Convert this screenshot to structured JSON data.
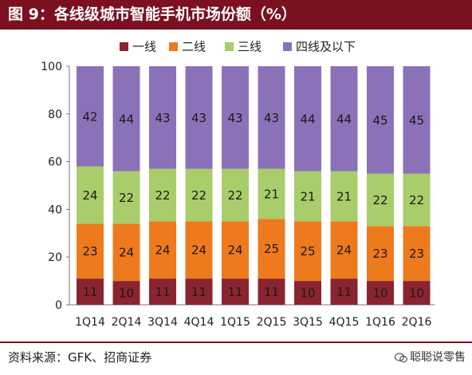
{
  "header": {
    "figure_label": "图 9：",
    "title": "各线级城市智能手机市场份额（%）"
  },
  "chart_data": {
    "type": "bar",
    "stacked": true,
    "title": "各线级城市智能手机市场份额（%）",
    "categories": [
      "1Q14",
      "2Q14",
      "3Q14",
      "4Q14",
      "1Q15",
      "2Q15",
      "3Q15",
      "4Q15",
      "1Q16",
      "2Q16"
    ],
    "series": [
      {
        "name": "一线",
        "color": "#8b2431",
        "values": [
          11,
          10,
          11,
          11,
          11,
          11,
          10,
          11,
          10,
          10
        ]
      },
      {
        "name": "二线",
        "color": "#ee7a1e",
        "values": [
          23,
          24,
          24,
          24,
          24,
          25,
          25,
          24,
          23,
          23
        ]
      },
      {
        "name": "三线",
        "color": "#a9cd6a",
        "values": [
          24,
          22,
          22,
          22,
          22,
          21,
          21,
          21,
          22,
          22
        ]
      },
      {
        "name": "四线及以下",
        "color": "#8b72b8",
        "values": [
          42,
          44,
          43,
          43,
          43,
          43,
          44,
          44,
          45,
          45
        ]
      }
    ],
    "ylim": [
      0,
      100
    ],
    "yticks": [
      0,
      20,
      40,
      60,
      80,
      100
    ],
    "grid": false,
    "legend": "top"
  },
  "footer": {
    "source": "资料来源：GFK、招商证券",
    "watermark": "聪聪说零售"
  }
}
